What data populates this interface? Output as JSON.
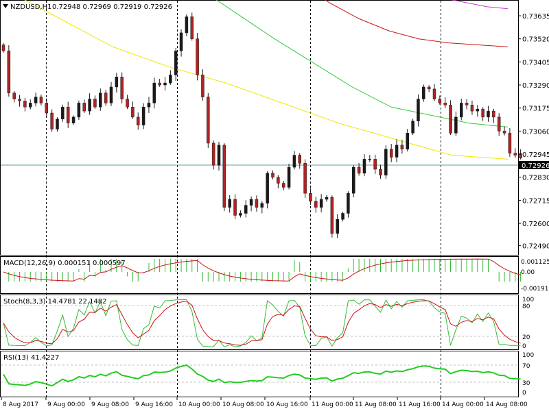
{
  "header": {
    "symbol": "NZDUSD,H1",
    "ohlc": "0.72948 0.72969 0.72919 0.72926"
  },
  "price_scale": {
    "ticks": [
      "0.73635",
      "0.73520",
      "0.73405",
      "0.73290",
      "0.73175",
      "0.73060",
      "0.72945",
      "0.72830",
      "0.72715",
      "0.72600",
      "0.72490"
    ],
    "current_price": "0.72926"
  },
  "time_axis": {
    "labels": [
      "8 Aug 2017",
      "9 Aug 00:00",
      "9 Aug 08:00",
      "9 Aug 16:00",
      "10 Aug 00:00",
      "10 Aug 08:00",
      "10 Aug 16:00",
      "11 Aug 00:00",
      "11 Aug 08:00",
      "11 Aug 16:00",
      "14 Aug 00:00",
      "14 Aug 08:00"
    ]
  },
  "panels": {
    "macd": {
      "title": "MACD(12,26,9) 0.000151 0.000597",
      "ticks": [
        "0.001125",
        "0.00",
        "-0.001918"
      ]
    },
    "stoch": {
      "title": "Stoch(8,3,3) 14.4781 22.1482",
      "ticks": [
        "100",
        "80",
        "20",
        "0"
      ]
    },
    "rsi": {
      "title": "RSI(13) 41.4227",
      "ticks": [
        "100",
        "70",
        "30",
        "0"
      ]
    }
  },
  "colors": {
    "bull": "#1a1a1a",
    "bear": "#b22222",
    "ma_yellow": "#f2e600",
    "ma_green": "#33cc33",
    "ma_red": "#cc1111",
    "ma_magenta": "#cc33cc",
    "macd_hist": "#33bb33",
    "signal": "#cc1111",
    "rsi": "#22cc22",
    "hline": "#5f9ea0"
  },
  "chart_data": {
    "type": "candlestick",
    "symbol": "NZDUSD,H1",
    "timeframe": "H1",
    "current_price": 0.72926,
    "last_bar_ohlc": {
      "open": 0.72948,
      "high": 0.72969,
      "low": 0.72919,
      "close": 0.72926
    },
    "price_range": [
      0.7245,
      0.737
    ],
    "closes_approx": [
      0.7346,
      0.7325,
      0.7322,
      0.7321,
      0.7318,
      0.732,
      0.7323,
      0.732,
      0.7315,
      0.7307,
      0.7312,
      0.7318,
      0.731,
      0.7313,
      0.732,
      0.7316,
      0.7322,
      0.7318,
      0.7325,
      0.732,
      0.7328,
      0.7333,
      0.7322,
      0.7318,
      0.7313,
      0.7309,
      0.7318,
      0.732,
      0.733,
      0.7329,
      0.733,
      0.7334,
      0.7346,
      0.7355,
      0.7363,
      0.7352,
      0.7334,
      0.7323,
      0.73,
      0.7289,
      0.7299,
      0.7268,
      0.7272,
      0.7264,
      0.7265,
      0.7269,
      0.7272,
      0.7268,
      0.727,
      0.7285,
      0.7283,
      0.728,
      0.7278,
      0.7288,
      0.7294,
      0.729,
      0.7275,
      0.7271,
      0.7268,
      0.7272,
      0.7273,
      0.7255,
      0.7262,
      0.7265,
      0.7275,
      0.7288,
      0.7285,
      0.7292,
      0.7292,
      0.7287,
      0.7284,
      0.7297,
      0.7293,
      0.7299,
      0.7297,
      0.7305,
      0.7311,
      0.7322,
      0.7328,
      0.7327,
      0.7322,
      0.732,
      0.7319,
      0.7305,
      0.7313,
      0.732,
      0.7319,
      0.7316,
      0.7317,
      0.7313,
      0.7316,
      0.7313,
      0.7306,
      0.7305,
      0.7295,
      0.7294,
      0.72926
    ],
    "moving_averages": [
      {
        "color": "yellow",
        "start": 0.7378,
        "end": 0.7292
      },
      {
        "color": "green",
        "start": 0.7395,
        "end": 0.7308
      },
      {
        "color": "red",
        "start": 0.74,
        "end": 0.7348
      },
      {
        "color": "magenta",
        "start": 0.7378,
        "end": 0.7367
      }
    ],
    "indicators": {
      "macd": {
        "main": 0.000151,
        "signal": 0.000597
      },
      "stochastic": {
        "k": 14.4781,
        "d": 22.1482
      },
      "rsi": 41.4227
    }
  }
}
